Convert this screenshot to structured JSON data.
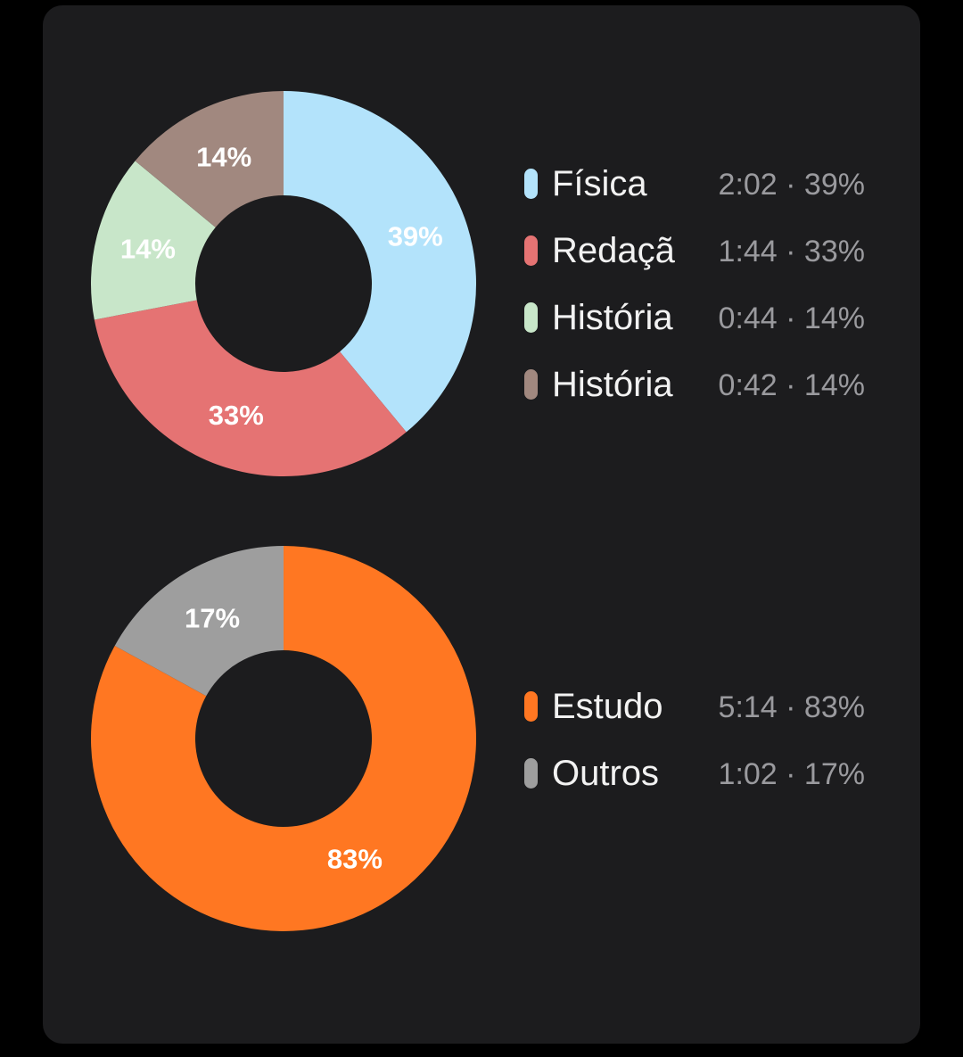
{
  "chart_data": [
    {
      "type": "pie",
      "variant": "donut",
      "categories": [
        "Física",
        "Redaçã",
        "História",
        "História"
      ],
      "values": [
        39,
        33,
        14,
        14
      ],
      "slice_labels": [
        "39%",
        "33%",
        "14%",
        "14%"
      ],
      "colors": [
        "#b3e3fb",
        "#e57373",
        "#c8e6c9",
        "#a1887f"
      ],
      "legend": [
        {
          "name": "Física",
          "value": "2:02 · 39%"
        },
        {
          "name": "Redaçã",
          "value": "1:44 · 33%"
        },
        {
          "name": "História",
          "value": "0:44 · 14%"
        },
        {
          "name": "História",
          "value": "0:42 · 14%"
        }
      ],
      "legend_placement": "right"
    },
    {
      "type": "pie",
      "variant": "donut",
      "categories": [
        "Estudo",
        "Outros"
      ],
      "values": [
        83,
        17
      ],
      "slice_labels": [
        "83%",
        "17%"
      ],
      "colors": [
        "#ff7722",
        "#9e9e9e"
      ],
      "legend": [
        {
          "name": "Estudo",
          "value": "5:14 · 83%"
        },
        {
          "name": "Outros",
          "value": "1:02 · 17%"
        }
      ],
      "legend_placement": "right"
    }
  ]
}
